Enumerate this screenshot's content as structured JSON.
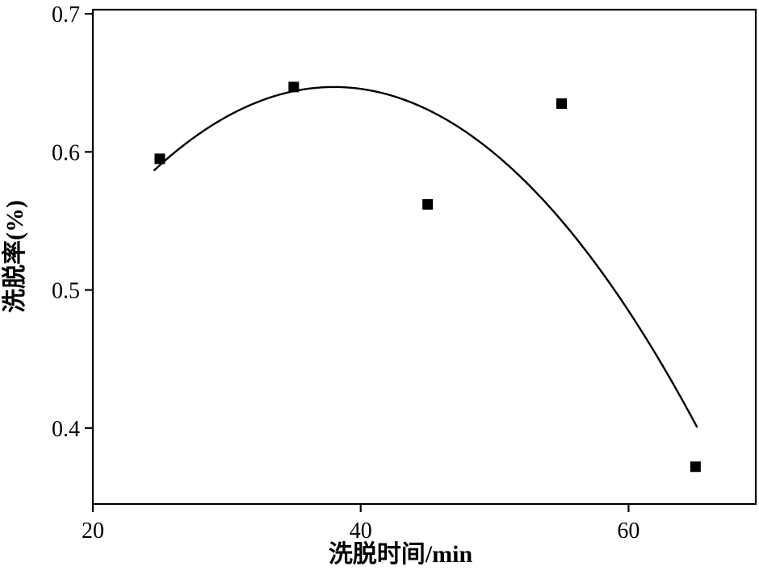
{
  "chart_data": {
    "type": "scatter",
    "title": "",
    "xlabel": "洗脱时间/min",
    "ylabel": "洗脱率(%)",
    "xlim": [
      20,
      69.5
    ],
    "ylim": [
      0.345,
      0.703
    ],
    "xticks": [
      20,
      40,
      60
    ],
    "xtick_labels": [
      "20",
      "40",
      "60"
    ],
    "yticks": [
      0.4,
      0.5,
      0.6,
      0.7
    ],
    "ytick_labels": [
      "0.4",
      "0.5",
      "0.6",
      "0.7"
    ],
    "points": [
      {
        "x": 25,
        "y": 0.595
      },
      {
        "x": 35,
        "y": 0.647
      },
      {
        "x": 45,
        "y": 0.562
      },
      {
        "x": 55,
        "y": 0.635
      },
      {
        "x": 65,
        "y": 0.372
      }
    ],
    "fit_curve": {
      "model": "quadratic",
      "peak_x": 38,
      "peak_y": 0.647,
      "a": 0.000335,
      "x_start": 24.6,
      "x_end": 65.2
    },
    "marker": {
      "shape": "square",
      "size": 13,
      "color": "#000000"
    },
    "line_color": "#000000",
    "axis_color": "#000000",
    "grid": false
  }
}
